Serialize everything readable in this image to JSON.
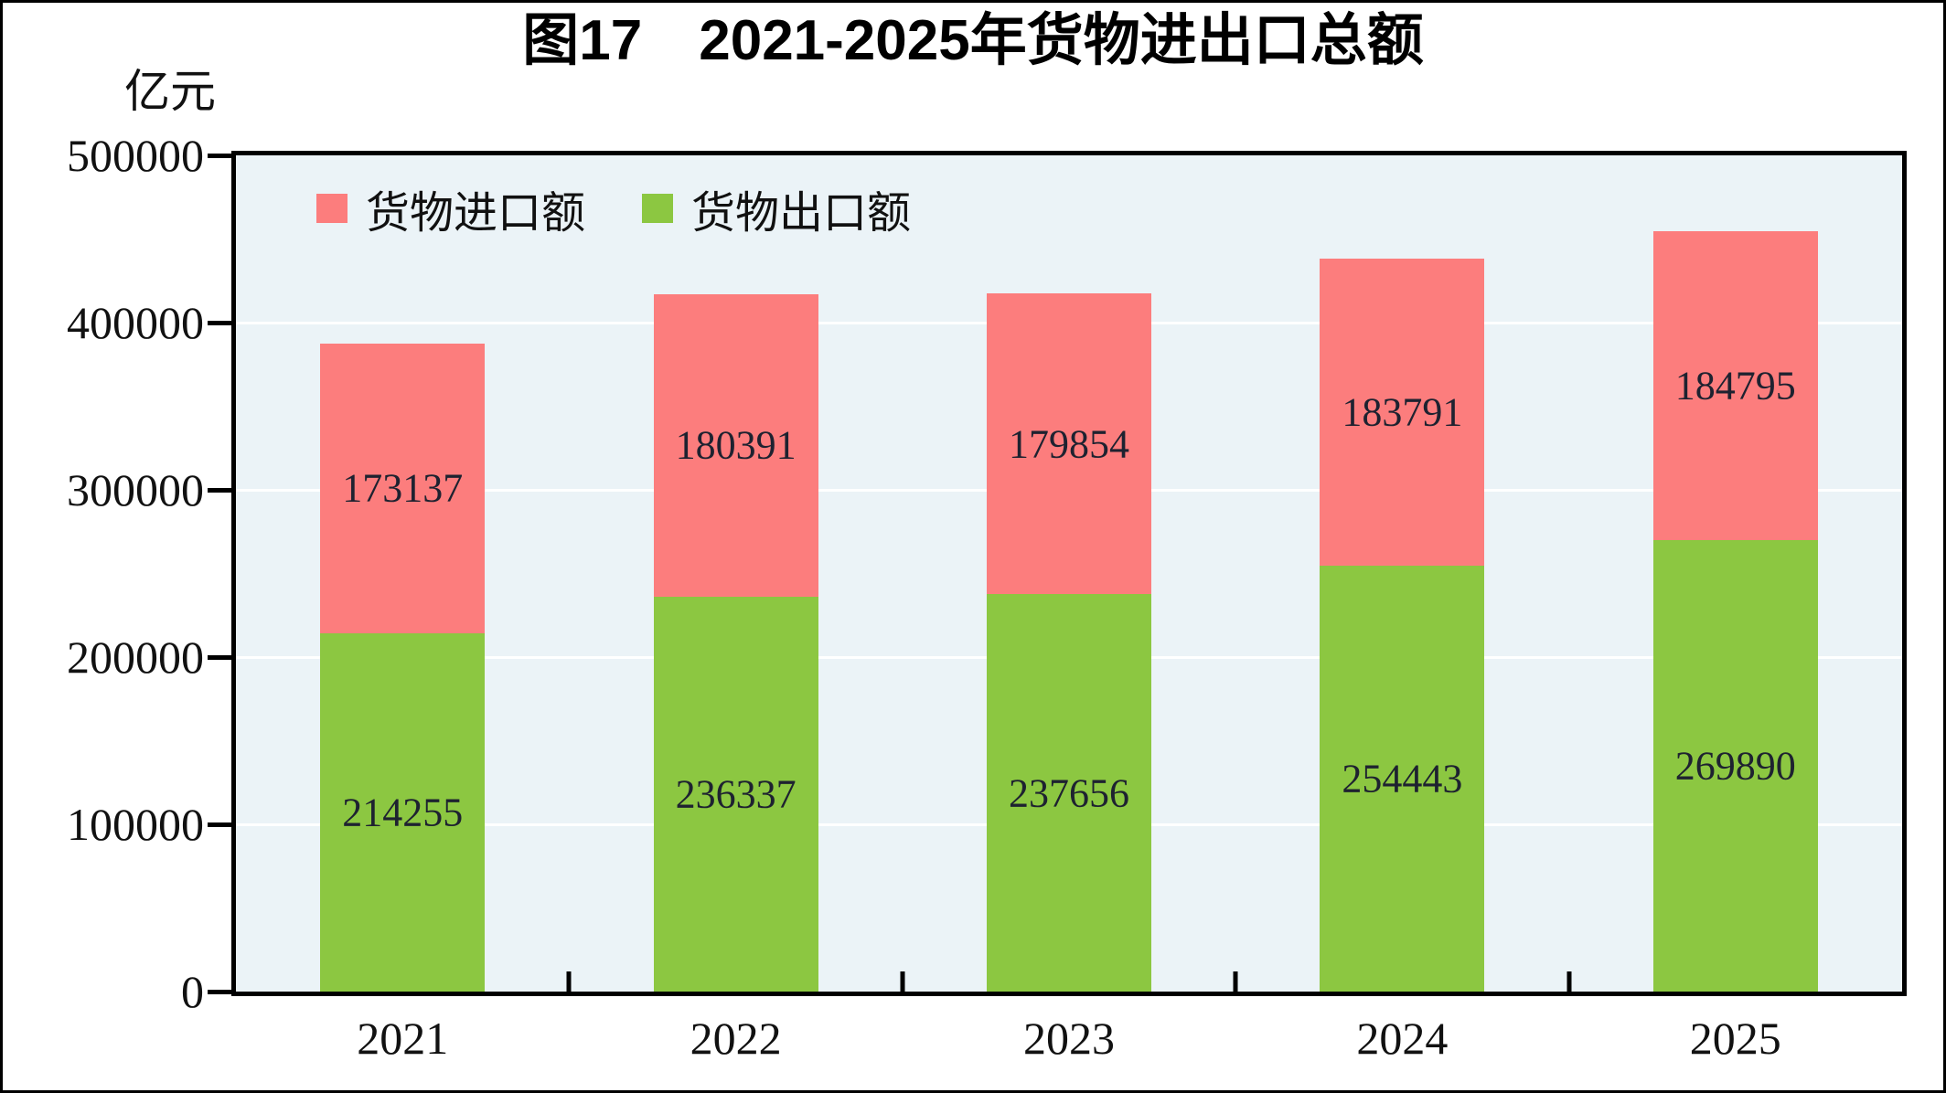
{
  "chart_data": {
    "type": "bar",
    "stacked": true,
    "title": "图17　2021-2025年货物进出口总额",
    "y_unit_label": "亿元",
    "categories": [
      "2021",
      "2022",
      "2023",
      "2024",
      "2025"
    ],
    "series": [
      {
        "key": "export",
        "name": "货物出口额",
        "color": "#8cc741",
        "values": [
          214255,
          236337,
          237656,
          254443,
          269890
        ]
      },
      {
        "key": "import",
        "name": "货物进口额",
        "color": "#fc7d7d",
        "values": [
          173137,
          180391,
          179854,
          183791,
          184795
        ]
      }
    ],
    "legend": [
      {
        "key": "import",
        "label": "货物进口额",
        "color": "#fc7d7d"
      },
      {
        "key": "export",
        "label": "货物出口额",
        "color": "#8cc741"
      }
    ],
    "ylim": [
      0,
      500000
    ],
    "yticks": [
      0,
      100000,
      200000,
      300000,
      400000,
      500000
    ],
    "grid": "horizontal",
    "gridline_color": "#ffffff",
    "plot_background": "#ebf3f7",
    "axis_color": "#000000",
    "legend_position": "top-left-inside"
  }
}
